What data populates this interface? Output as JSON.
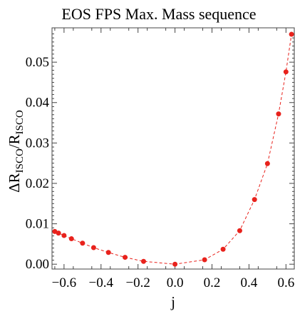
{
  "chart_data": {
    "type": "scatter",
    "title": "EOS FPS Max. Mass sequence",
    "xlabel": "j",
    "ylabel_main": "ΔR",
    "ylabel_sub1": "ISCO",
    "ylabel_mid": "/R",
    "ylabel_sub2": "ISCO",
    "xlim": [
      -0.665,
      0.645
    ],
    "ylim": [
      -0.0012,
      0.0585
    ],
    "xticks": [
      -0.6,
      -0.4,
      -0.2,
      0.0,
      0.2,
      0.4,
      0.6
    ],
    "xtick_labels": [
      "−0.6",
      "−0.4",
      "−0.2",
      "0.0",
      "0.2",
      "0.4",
      "0.6"
    ],
    "yticks": [
      0.0,
      0.01,
      0.02,
      0.03,
      0.04,
      0.05
    ],
    "ytick_labels": [
      "0.00",
      "0.01",
      "0.02",
      "0.03",
      "0.04",
      "0.05"
    ],
    "grid": false,
    "series": [
      {
        "color": "#e8221c",
        "line_style": "dashed",
        "x": [
          -0.65,
          -0.63,
          -0.6,
          -0.56,
          -0.5,
          -0.44,
          -0.36,
          -0.27,
          -0.17,
          0.0,
          0.16,
          0.26,
          0.35,
          0.43,
          0.5,
          0.56,
          0.6,
          0.63
        ],
        "y": [
          0.0081,
          0.0077,
          0.0071,
          0.0063,
          0.0052,
          0.0041,
          0.0029,
          0.0017,
          0.0007,
          0.0,
          0.0011,
          0.0037,
          0.0083,
          0.016,
          0.0249,
          0.0372,
          0.0476,
          0.0569
        ]
      }
    ]
  }
}
